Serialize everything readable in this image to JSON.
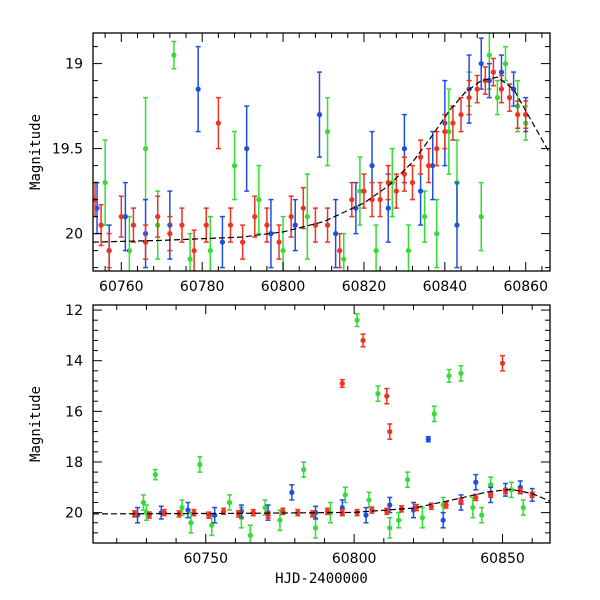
{
  "colors": {
    "green": "#33dd33",
    "blue": "#1f4fe0",
    "red": "#ee3322",
    "model": "#000000"
  },
  "chart_data": [
    {
      "type": "scatter",
      "panel": "top",
      "title": "",
      "xlabel": "",
      "ylabel": "Magnitude",
      "xlim": [
        60753,
        60866
      ],
      "ylim": [
        20.22,
        18.82
      ],
      "y_inverted": true,
      "xticks": [
        60760,
        60780,
        60800,
        60820,
        60840,
        60860
      ],
      "yticks": [
        19,
        19.5,
        20
      ],
      "ytick_labels": [
        "19",
        "19.5",
        "20"
      ],
      "model_curve": {
        "x": [
          60753,
          60770,
          60790,
          60800,
          60810,
          60820,
          60826,
          60832,
          60837,
          60841,
          60845,
          60849,
          60853,
          60857,
          60861,
          60866
        ],
        "y": [
          20.05,
          20.04,
          20.02,
          19.99,
          19.93,
          19.82,
          19.72,
          19.58,
          19.42,
          19.28,
          19.17,
          19.1,
          19.08,
          19.15,
          19.32,
          19.53
        ]
      },
      "series": [
        {
          "color": "green",
          "x": [
            60756,
            60762,
            60766,
            60769,
            60773,
            60777,
            60782,
            60788,
            60794,
            60800,
            60806,
            60811,
            60815,
            60819,
            60823,
            60827,
            60831,
            60835,
            60838,
            60841,
            60843,
            60846,
            60849,
            60851,
            60853,
            60855,
            60858,
            60860
          ],
          "y": [
            19.7,
            20.1,
            19.5,
            19.95,
            18.95,
            20.15,
            20.1,
            19.6,
            19.8,
            20.1,
            19.9,
            19.4,
            20.15,
            19.75,
            20.1,
            19.7,
            20.1,
            19.9,
            20.0,
            19.4,
            19.7,
            19.15,
            19.9,
            18.95,
            19.2,
            19.0,
            19.25,
            19.35
          ],
          "err": [
            0.25,
            0.2,
            0.3,
            0.2,
            0.08,
            0.15,
            0.2,
            0.2,
            0.2,
            0.2,
            0.25,
            0.2,
            0.15,
            0.2,
            0.15,
            0.2,
            0.15,
            0.15,
            0.2,
            0.25,
            0.25,
            0.1,
            0.2,
            0.2,
            0.1,
            0.1,
            0.15,
            0.1
          ]
        },
        {
          "color": "blue",
          "x": [
            60754,
            60757,
            60761,
            60766,
            60772,
            60779,
            60785,
            60791,
            60797,
            60803,
            60809,
            60813,
            60818,
            60822,
            60826,
            60830,
            60834,
            60837,
            60840,
            60843,
            60846,
            60849,
            60851,
            60854,
            60857,
            60860
          ],
          "y": [
            19.85,
            20.1,
            19.9,
            20.0,
            19.95,
            19.15,
            20.05,
            19.5,
            20.0,
            19.95,
            19.3,
            20.0,
            19.85,
            19.6,
            19.85,
            19.5,
            19.75,
            19.6,
            19.35,
            19.95,
            19.15,
            19.0,
            19.1,
            19.05,
            19.15,
            19.3
          ],
          "err": [
            0.15,
            0.15,
            0.2,
            0.2,
            0.2,
            0.25,
            0.15,
            0.25,
            0.2,
            0.15,
            0.25,
            0.2,
            0.15,
            0.2,
            0.2,
            0.2,
            0.2,
            0.2,
            0.25,
            0.25,
            0.2,
            0.15,
            0.1,
            0.1,
            0.1,
            0.1
          ]
        },
        {
          "color": "red",
          "x": [
            60753.5,
            60755,
            60757,
            60760,
            60763,
            60766,
            60769,
            60772,
            60775,
            60778,
            60781,
            60784,
            60787,
            60790,
            60793,
            60796,
            60799,
            60802,
            60805,
            60808,
            60811,
            60814,
            60817,
            60820,
            60822,
            60824,
            60826,
            60828,
            60830,
            60832,
            60834,
            60836,
            60838,
            60840,
            60842,
            60844,
            60846,
            60848,
            60850,
            60852,
            60854,
            60856,
            60858,
            60860
          ],
          "y": [
            19.8,
            19.95,
            20.1,
            19.9,
            19.95,
            20.05,
            19.9,
            20.0,
            19.95,
            20.1,
            19.95,
            19.35,
            19.95,
            20.05,
            19.9,
            19.95,
            20.05,
            19.9,
            19.85,
            19.95,
            19.95,
            20.1,
            19.8,
            19.75,
            19.8,
            19.8,
            19.7,
            19.75,
            19.65,
            19.7,
            19.55,
            19.6,
            19.5,
            19.4,
            19.35,
            19.3,
            19.2,
            19.15,
            19.1,
            19.05,
            19.15,
            19.2,
            19.3,
            19.3
          ],
          "err": [
            0.1,
            0.12,
            0.1,
            0.12,
            0.1,
            0.1,
            0.12,
            0.1,
            0.1,
            0.12,
            0.1,
            0.15,
            0.1,
            0.1,
            0.12,
            0.1,
            0.1,
            0.12,
            0.12,
            0.1,
            0.1,
            0.1,
            0.1,
            0.1,
            0.1,
            0.1,
            0.1,
            0.1,
            0.1,
            0.1,
            0.1,
            0.1,
            0.1,
            0.1,
            0.1,
            0.1,
            0.1,
            0.08,
            0.08,
            0.08,
            0.08,
            0.08,
            0.08,
            0.08
          ]
        }
      ]
    },
    {
      "type": "scatter",
      "panel": "bottom",
      "title": "",
      "xlabel": "HJD-2400000",
      "ylabel": "Magnitude",
      "xlim": [
        60712,
        60866
      ],
      "ylim": [
        21.2,
        11.8
      ],
      "y_inverted": true,
      "xticks": [
        60750,
        60800,
        60850
      ],
      "yticks": [
        12,
        14,
        16,
        18,
        20
      ],
      "ytick_labels": [
        "12",
        "14",
        "16",
        "18",
        "20"
      ],
      "model_curve": {
        "x": [
          60712,
          60760,
          60800,
          60820,
          60835,
          60845,
          60853,
          60860,
          60866
        ],
        "y": [
          20.05,
          20.03,
          19.99,
          19.82,
          19.45,
          19.18,
          19.08,
          19.25,
          19.55
        ]
      },
      "series": [
        {
          "color": "green",
          "x": [
            60729,
            60733,
            60742,
            60745,
            60752,
            60758,
            60762,
            60770,
            60775,
            60783,
            60792,
            60801,
            60808,
            60812,
            60818,
            60823,
            60827,
            60832,
            60836,
            60840,
            60846,
            60853,
            60857,
            60730,
            60748,
            60765,
            60787,
            60797,
            60805,
            60815,
            60830,
            60843
          ],
          "y": [
            19.6,
            18.5,
            19.8,
            20.4,
            20.5,
            19.6,
            20.2,
            19.8,
            20.3,
            18.3,
            20.0,
            12.4,
            15.3,
            20.6,
            18.7,
            20.2,
            16.1,
            14.6,
            14.5,
            19.8,
            18.9,
            19.1,
            19.8,
            20.0,
            18.1,
            20.9,
            20.6,
            19.3,
            19.5,
            20.3,
            19.7,
            20.1
          ],
          "err": [
            0.3,
            0.2,
            0.3,
            0.4,
            0.4,
            0.3,
            0.4,
            0.3,
            0.4,
            0.3,
            0.4,
            0.25,
            0.3,
            0.4,
            0.3,
            0.4,
            0.3,
            0.25,
            0.3,
            0.4,
            0.3,
            0.3,
            0.3,
            0.3,
            0.3,
            0.4,
            0.4,
            0.3,
            0.3,
            0.3,
            0.3,
            0.3
          ]
        },
        {
          "color": "blue",
          "x": [
            60727,
            60735,
            60744,
            60753,
            60762,
            60771,
            60779,
            60787,
            60796,
            60804,
            60812,
            60820,
            60825,
            60830,
            60836,
            60841,
            60846,
            60851,
            60856,
            60860
          ],
          "y": [
            20.1,
            20.0,
            19.9,
            20.1,
            19.95,
            20.0,
            19.2,
            20.0,
            19.8,
            20.1,
            19.7,
            19.9,
            17.1,
            20.3,
            19.6,
            18.8,
            19.3,
            19.1,
            19.0,
            19.3
          ],
          "err": [
            0.3,
            0.25,
            0.3,
            0.3,
            0.25,
            0.3,
            0.3,
            0.25,
            0.3,
            0.3,
            0.3,
            0.3,
            0.1,
            0.3,
            0.3,
            0.3,
            0.3,
            0.25,
            0.25,
            0.25
          ]
        },
        {
          "color": "red",
          "x": [
            60726,
            60731,
            60736,
            60741,
            60746,
            60751,
            60756,
            60761,
            60766,
            60771,
            60776,
            60781,
            60786,
            60791,
            60796,
            60801,
            60806,
            60811,
            60816,
            60821,
            60826,
            60831,
            60836,
            60841,
            60846,
            60851,
            60856,
            60860,
            60796,
            60803,
            60811,
            60812,
            60850
          ],
          "y": [
            20.05,
            20.1,
            20.0,
            20.05,
            20.0,
            20.1,
            19.95,
            20.05,
            20.0,
            20.1,
            19.95,
            20.0,
            20.05,
            19.95,
            20.0,
            20.0,
            19.9,
            19.95,
            19.85,
            19.8,
            19.75,
            19.7,
            19.55,
            19.4,
            19.3,
            19.15,
            19.15,
            19.3,
            14.9,
            13.2,
            15.4,
            16.8,
            14.1
          ],
          "err": [
            0.12,
            0.12,
            0.12,
            0.12,
            0.12,
            0.12,
            0.12,
            0.12,
            0.12,
            0.12,
            0.12,
            0.12,
            0.12,
            0.12,
            0.12,
            0.12,
            0.12,
            0.12,
            0.12,
            0.12,
            0.12,
            0.12,
            0.12,
            0.12,
            0.1,
            0.1,
            0.1,
            0.1,
            0.15,
            0.25,
            0.3,
            0.3,
            0.3
          ]
        }
      ]
    }
  ]
}
